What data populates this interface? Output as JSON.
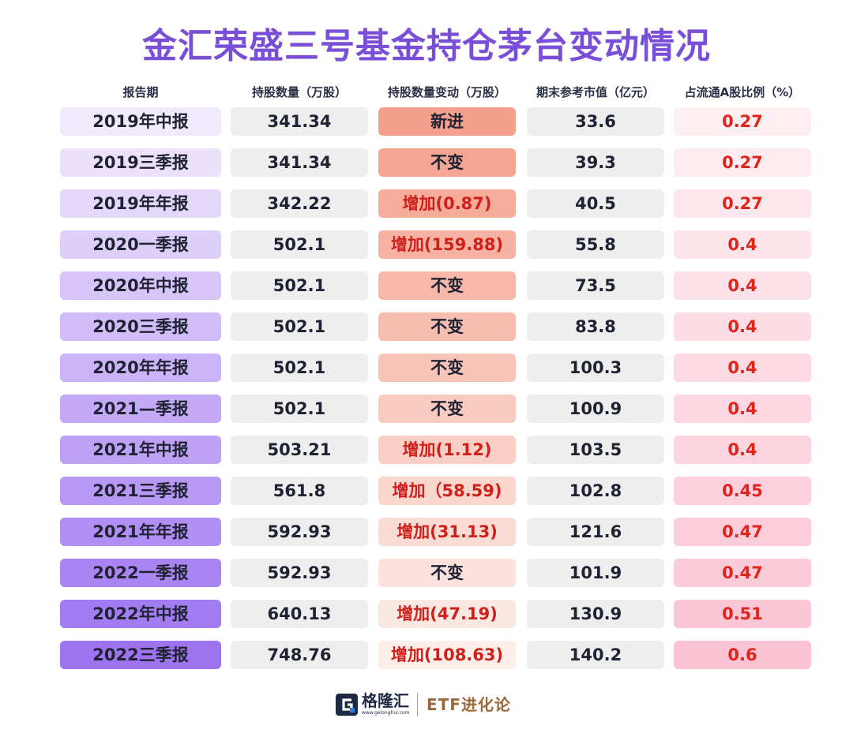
{
  "title": "金汇荣盛三号基金持仓茅台变动情况",
  "headers": [
    "报告期",
    "持股数量（万股）",
    "持股数量变动（万股）",
    "期末参考市值（亿元）",
    "占流通A股比例（%）"
  ],
  "rows": [
    {
      "period": "2019年中报",
      "shares": "341.34",
      "change": "新进",
      "value": "33.6",
      "ratio": "0.27"
    },
    {
      "period": "2019三季报",
      "shares": "341.34",
      "change": "不变",
      "value": "39.3",
      "ratio": "0.27"
    },
    {
      "period": "2019年年报",
      "shares": "342.22",
      "change": "增加(0.87)",
      "value": "40.5",
      "ratio": "0.27"
    },
    {
      "period": "2020一季报",
      "shares": "502.1",
      "change": "增加(159.88)",
      "value": "55.8",
      "ratio": "0.4"
    },
    {
      "period": "2020年中报",
      "shares": "502.1",
      "change": "不变",
      "value": "73.5",
      "ratio": "0.4"
    },
    {
      "period": "2020三季报",
      "shares": "502.1",
      "change": "不变",
      "value": "83.8",
      "ratio": "0.4"
    },
    {
      "period": "2020年年报",
      "shares": "502.1",
      "change": "不变",
      "value": "100.3",
      "ratio": "0.4"
    },
    {
      "period": "2021—季报",
      "shares": "502.1",
      "change": "不变",
      "value": "100.9",
      "ratio": "0.4"
    },
    {
      "period": "2021年中报",
      "shares": "503.21",
      "change": "增加(1.12)",
      "value": "103.5",
      "ratio": "0.4"
    },
    {
      "period": "2021三季报",
      "shares": "561.8",
      "change": "增加（58.59)",
      "value": "102.8",
      "ratio": "0.45"
    },
    {
      "period": "2021年年报",
      "shares": "592.93",
      "change": "增加(31.13)",
      "value": "121.6",
      "ratio": "0.47"
    },
    {
      "period": "2022一季报",
      "shares": "592.93",
      "change": "不变",
      "value": "101.9",
      "ratio": "0.47"
    },
    {
      "period": "2022年中报",
      "shares": "640.13",
      "change": "增加(47.19)",
      "value": "130.9",
      "ratio": "0.51"
    },
    {
      "period": "2022三季报",
      "shares": "748.76",
      "change": "增加(108.63)",
      "value": "140.2",
      "ratio": "0.6"
    }
  ],
  "colors": {
    "title": "#7a4fd8",
    "period_start": "#f1eafc",
    "period_end": "#9d73f0",
    "change_start": "#f4a08c",
    "change_end": "#fdeeea",
    "ratio_start": "#fdeef1",
    "ratio_end": "#fbc3d3",
    "neutral": "#eeeeee"
  },
  "footer": {
    "logo_name": "格隆汇",
    "logo_url": "www.gelonghui.com",
    "brand": "ETF进化论"
  }
}
